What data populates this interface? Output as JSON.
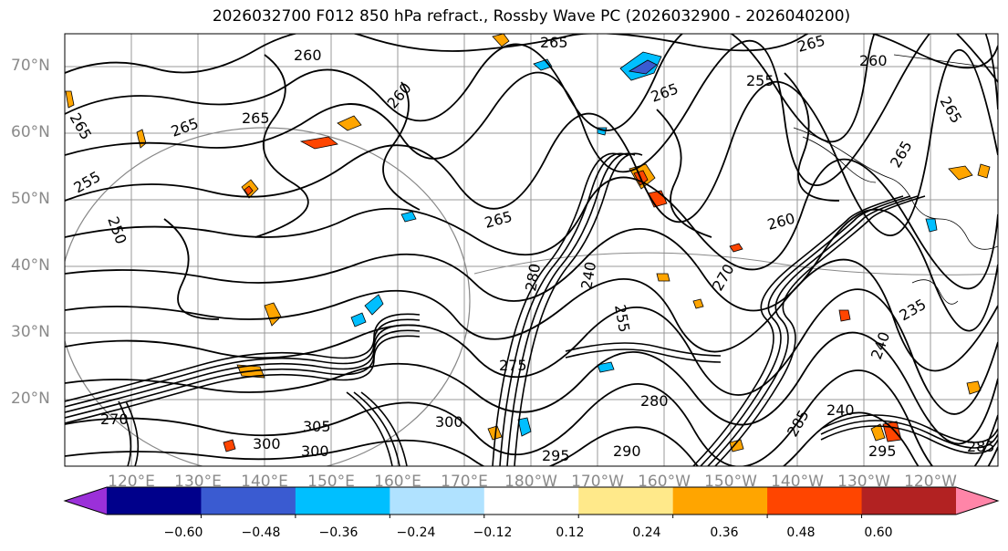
{
  "title": "2026032700 F012 850 hPa refract., Rossby Wave PC (2026032900 - 2026040200)",
  "lat_labels": [
    "70°N",
    "60°N",
    "50°N",
    "40°N",
    "30°N",
    "20°N"
  ],
  "lon_labels": [
    "120°E",
    "130°E",
    "140°E",
    "150°E",
    "160°E",
    "170°E",
    "180°W",
    "170°W",
    "160°W",
    "150°W",
    "140°W",
    "130°W",
    "120°W"
  ],
  "contour_labels": [
    "265",
    "260",
    "265",
    "260",
    "255",
    "265",
    "265",
    "265",
    "265",
    "265",
    "255",
    "250",
    "260",
    "265",
    "280",
    "240",
    "255",
    "260",
    "270",
    "265",
    "235",
    "240",
    "240",
    "300",
    "305",
    "300",
    "300",
    "285",
    "295",
    "290",
    "295",
    "280",
    "275",
    "270",
    "285"
  ],
  "colorbar": {
    "colors": [
      "#9b30d9",
      "#00008b",
      "#3a5bd1",
      "#00bfff",
      "#b0e2ff",
      "#ffffff",
      "#ffe98a",
      "#ffa500",
      "#ff4500",
      "#b22222",
      "#ff85a8"
    ],
    "ticks": [
      "−0.60",
      "−0.48",
      "−0.36",
      "−0.24",
      "−0.12",
      "0.12",
      "0.24",
      "0.36",
      "0.48",
      "0.60"
    ]
  }
}
